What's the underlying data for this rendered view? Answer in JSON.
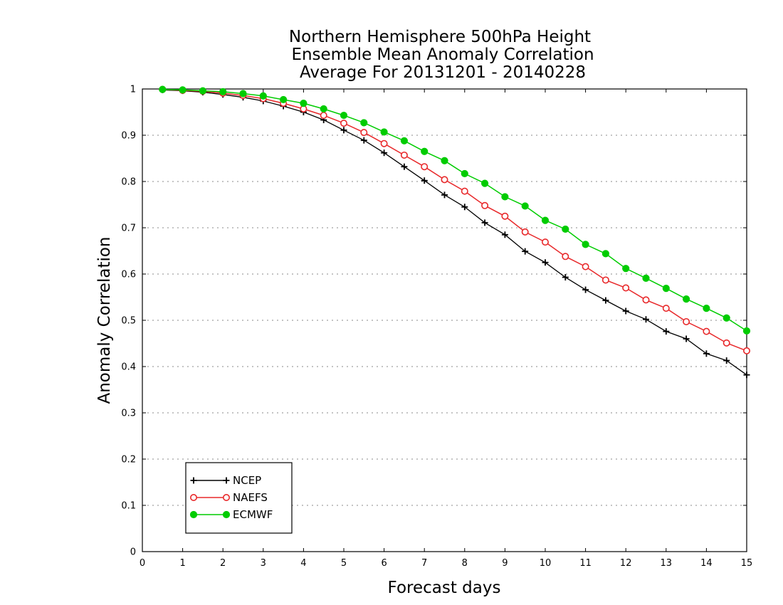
{
  "chart_data": {
    "type": "line",
    "title": [
      "Northern Hemisphere 500hPa Height",
      "Ensemble Mean Anomaly Correlation",
      "Average For 20131201 - 20140228"
    ],
    "xlabel": "Forecast days",
    "ylabel": "Anomaly Correlation",
    "xlim": [
      0,
      15
    ],
    "ylim": [
      0,
      1
    ],
    "xticks": [
      0,
      1,
      2,
      3,
      4,
      5,
      6,
      7,
      8,
      9,
      10,
      11,
      12,
      13,
      14,
      15
    ],
    "yticks": [
      0,
      0.1,
      0.2,
      0.3,
      0.4,
      0.5,
      0.6,
      0.7,
      0.8,
      0.9,
      1
    ],
    "ytick_labels": [
      "0",
      "0.1",
      "0.2",
      "0.3",
      "0.4",
      "0.5",
      "0.6",
      "0.7",
      "0.8",
      "0.9",
      "1"
    ],
    "grid": "horizontal dotted",
    "legend": "bottom-left",
    "x": [
      0.5,
      1,
      1.5,
      2,
      2.5,
      3,
      3.5,
      4,
      4.5,
      5,
      5.5,
      6,
      6.5,
      7,
      7.5,
      8,
      8.5,
      9,
      9.5,
      10,
      10.5,
      11,
      11.5,
      12,
      12.5,
      13,
      13.5,
      14,
      14.5,
      15
    ],
    "series": [
      {
        "name": "NCEP",
        "color": "#000000",
        "marker": "plus",
        "values": [
          0.998,
          0.996,
          0.993,
          0.988,
          0.982,
          0.974,
          0.963,
          0.95,
          0.933,
          0.911,
          0.889,
          0.862,
          0.832,
          0.802,
          0.771,
          0.745,
          0.711,
          0.685,
          0.649,
          0.625,
          0.593,
          0.566,
          0.543,
          0.52,
          0.502,
          0.476,
          0.46,
          0.428,
          0.413,
          0.382
        ]
      },
      {
        "name": "NAEFS",
        "color": "#e8282a",
        "marker": "open-circle",
        "values": [
          0.999,
          0.997,
          0.995,
          0.991,
          0.986,
          0.979,
          0.969,
          0.957,
          0.943,
          0.926,
          0.906,
          0.882,
          0.857,
          0.832,
          0.804,
          0.779,
          0.748,
          0.725,
          0.691,
          0.669,
          0.638,
          0.616,
          0.587,
          0.57,
          0.544,
          0.526,
          0.497,
          0.476,
          0.451,
          0.434
        ]
      },
      {
        "name": "ECMWF",
        "color": "#00cc00",
        "marker": "filled-circle",
        "values": [
          0.999,
          0.998,
          0.996,
          0.994,
          0.99,
          0.985,
          0.977,
          0.969,
          0.957,
          0.943,
          0.927,
          0.907,
          0.888,
          0.865,
          0.845,
          0.817,
          0.796,
          0.767,
          0.747,
          0.716,
          0.697,
          0.664,
          0.644,
          0.612,
          0.591,
          0.569,
          0.546,
          0.526,
          0.505,
          0.477
        ]
      }
    ]
  }
}
